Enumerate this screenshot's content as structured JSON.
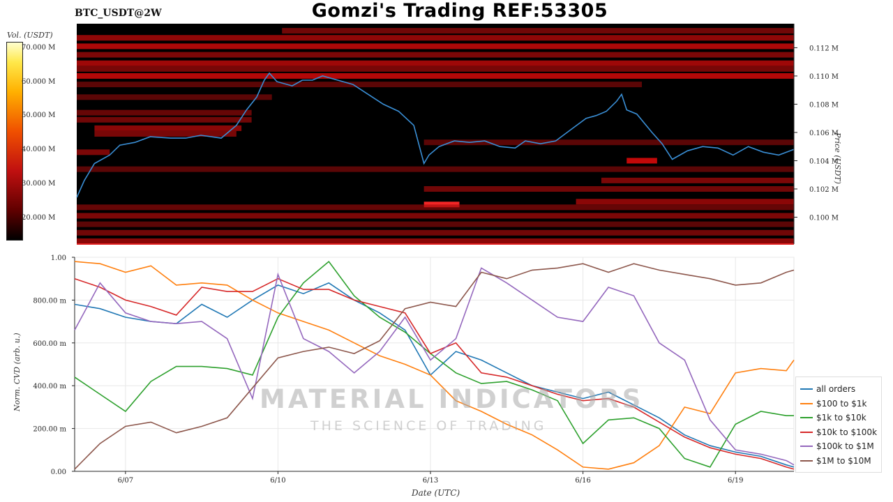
{
  "header": {
    "title": "Gomzi's Trading REF:53305",
    "pair": "BTC_USDT@2W"
  },
  "watermark": {
    "line1": "MATERIAL INDICATORS",
    "line2": "THE SCIENCE OF TRADING"
  },
  "colors": {
    "all_orders": "#1f77b4",
    "r100_1k": "#ff7f0e",
    "r1k_10k": "#2ca02c",
    "r10k_100k": "#d62728",
    "r100k_1m": "#9467bd",
    "r1m_10m": "#8c564b",
    "price_line": "#3a8fd6",
    "heat_low": "#000000",
    "heat_high": "#ff2020"
  },
  "chart_data": [
    {
      "type": "heatmap",
      "title": "",
      "colorbar_label": "Vol. (USDT)",
      "colorbar_ticks": [
        "70.000 M",
        "60.000 M",
        "50.000 M",
        "40.000 M",
        "30.000 M",
        "20.000 M"
      ],
      "colorbar_values": [
        70,
        60,
        50,
        40,
        30,
        20
      ],
      "colorbar_range": [
        14,
        72
      ],
      "ylabel": "Price (USDT)",
      "y_ticks": [
        "0.100 M",
        "0.102 M",
        "0.104 M",
        "0.106 M",
        "0.108 M",
        "0.110 M",
        "0.112 M"
      ],
      "y_tick_values": [
        100000,
        102000,
        104000,
        106000,
        108000,
        110000,
        112000
      ],
      "ylim": [
        98100,
        113700
      ],
      "xlim": [
        6.15,
        20.3
      ],
      "price_series": {
        "name": "",
        "x": [
          6.15,
          6.3,
          6.5,
          6.8,
          7.0,
          7.3,
          7.6,
          8.0,
          8.3,
          8.6,
          9.0,
          9.3,
          9.5,
          9.7,
          9.85,
          9.95,
          10.1,
          10.4,
          10.6,
          10.8,
          11.0,
          11.3,
          11.6,
          11.9,
          12.2,
          12.5,
          12.8,
          13.0,
          13.1,
          13.3,
          13.6,
          13.9,
          14.2,
          14.5,
          14.8,
          15.0,
          15.3,
          15.6,
          15.9,
          16.2,
          16.4,
          16.6,
          16.8,
          16.9,
          17.0,
          17.2,
          17.5,
          17.7,
          17.9,
          18.2,
          18.5,
          18.8,
          19.1,
          19.4,
          19.7,
          20.0,
          20.3
        ],
        "values": [
          101400,
          102600,
          103800,
          104400,
          105100,
          105300,
          105700,
          105600,
          105600,
          105800,
          105600,
          106500,
          107600,
          108500,
          109700,
          110200,
          109600,
          109300,
          109700,
          109700,
          110000,
          109700,
          109400,
          108700,
          108000,
          107500,
          106500,
          103800,
          104400,
          105000,
          105400,
          105300,
          105400,
          105000,
          104900,
          105400,
          105200,
          105400,
          106200,
          107000,
          107200,
          107500,
          108200,
          108700,
          107600,
          107300,
          106000,
          105200,
          104100,
          104700,
          105000,
          104900,
          104400,
          105000,
          104600,
          104400,
          104800
        ]
      },
      "liquidity_bands": [
        {
          "price": 113200,
          "x0": 10.2,
          "x1": 20.3,
          "vol": 26
        },
        {
          "price": 112700,
          "x0": 6.15,
          "x1": 20.3,
          "vol": 31
        },
        {
          "price": 112100,
          "x0": 6.15,
          "x1": 20.3,
          "vol": 35
        },
        {
          "price": 111500,
          "x0": 6.15,
          "x1": 20.3,
          "vol": 28
        },
        {
          "price": 110900,
          "x0": 6.15,
          "x1": 20.3,
          "vol": 33
        },
        {
          "price": 110500,
          "x0": 6.15,
          "x1": 20.3,
          "vol": 27
        },
        {
          "price": 110000,
          "x0": 6.15,
          "x1": 20.3,
          "vol": 36
        },
        {
          "price": 109400,
          "x0": 6.15,
          "x1": 17.3,
          "vol": 22
        },
        {
          "price": 108500,
          "x0": 6.15,
          "x1": 10.0,
          "vol": 22
        },
        {
          "price": 107400,
          "x0": 6.15,
          "x1": 9.6,
          "vol": 24
        },
        {
          "price": 106900,
          "x0": 6.15,
          "x1": 9.6,
          "vol": 26
        },
        {
          "price": 106300,
          "x0": 6.5,
          "x1": 9.4,
          "vol": 30
        },
        {
          "price": 105900,
          "x0": 6.5,
          "x1": 9.3,
          "vol": 27
        },
        {
          "price": 105300,
          "x0": 13.0,
          "x1": 20.3,
          "vol": 22
        },
        {
          "price": 104600,
          "x0": 6.15,
          "x1": 6.8,
          "vol": 28
        },
        {
          "price": 104000,
          "x0": 17.0,
          "x1": 17.6,
          "vol": 38
        },
        {
          "price": 103400,
          "x0": 6.15,
          "x1": 20.3,
          "vol": 22
        },
        {
          "price": 102600,
          "x0": 16.5,
          "x1": 20.3,
          "vol": 28
        },
        {
          "price": 102000,
          "x0": 13.0,
          "x1": 20.3,
          "vol": 26
        },
        {
          "price": 101100,
          "x0": 16.0,
          "x1": 20.3,
          "vol": 30
        },
        {
          "price": 100900,
          "x0": 13.0,
          "x1": 13.7,
          "vol": 55
        },
        {
          "price": 100700,
          "x0": 6.15,
          "x1": 20.3,
          "vol": 24
        },
        {
          "price": 100100,
          "x0": 6.15,
          "x1": 20.3,
          "vol": 28
        },
        {
          "price": 99500,
          "x0": 6.15,
          "x1": 20.3,
          "vol": 22
        },
        {
          "price": 98900,
          "x0": 6.15,
          "x1": 20.3,
          "vol": 26
        },
        {
          "price": 98300,
          "x0": 6.15,
          "x1": 20.3,
          "vol": 30
        }
      ]
    },
    {
      "type": "line",
      "title": "",
      "xlabel": "Date (UTC)",
      "ylabel": "Norm. CVD (arb. u.)",
      "x_ticks": [
        "6/07",
        "6/10",
        "6/13",
        "6/16",
        "6/19"
      ],
      "x_tick_values": [
        7,
        10,
        13,
        16,
        19
      ],
      "y_ticks": [
        "0.00",
        "200.00 m",
        "400.00 m",
        "600.00 m",
        "800.00 m",
        "1.00"
      ],
      "y_tick_values": [
        0,
        0.2,
        0.4,
        0.6,
        0.8,
        1.0
      ],
      "xlim": [
        6.0,
        20.15
      ],
      "ylim": [
        0,
        1.0
      ],
      "grid": true,
      "legend_position": "bottom-right",
      "x": [
        6.0,
        6.5,
        7.0,
        7.5,
        8.0,
        8.5,
        9.0,
        9.5,
        10.0,
        10.5,
        11.0,
        11.5,
        12.0,
        12.5,
        13.0,
        13.5,
        14.0,
        14.5,
        15.0,
        15.5,
        16.0,
        16.5,
        17.0,
        17.5,
        18.0,
        18.5,
        19.0,
        19.5,
        20.0,
        20.15
      ],
      "series": [
        {
          "name": "all orders",
          "color_key": "all_orders",
          "values": [
            0.78,
            0.76,
            0.72,
            0.7,
            0.69,
            0.78,
            0.72,
            0.8,
            0.87,
            0.83,
            0.88,
            0.8,
            0.74,
            0.66,
            0.45,
            0.56,
            0.52,
            0.46,
            0.4,
            0.37,
            0.34,
            0.37,
            0.31,
            0.25,
            0.17,
            0.12,
            0.09,
            0.07,
            0.03,
            0.02
          ]
        },
        {
          "name": "$100 to $1k",
          "color_key": "r100_1k",
          "values": [
            0.98,
            0.97,
            0.93,
            0.96,
            0.87,
            0.88,
            0.87,
            0.8,
            0.74,
            0.7,
            0.66,
            0.6,
            0.54,
            0.5,
            0.45,
            0.33,
            0.28,
            0.22,
            0.17,
            0.1,
            0.02,
            0.01,
            0.04,
            0.12,
            0.3,
            0.27,
            0.46,
            0.48,
            0.47,
            0.52
          ]
        },
        {
          "name": "$1k to $10k",
          "color_key": "r1k_10k",
          "values": [
            0.44,
            0.36,
            0.28,
            0.42,
            0.49,
            0.49,
            0.48,
            0.45,
            0.72,
            0.88,
            0.98,
            0.82,
            0.72,
            0.65,
            0.55,
            0.46,
            0.41,
            0.42,
            0.38,
            0.33,
            0.13,
            0.24,
            0.25,
            0.2,
            0.06,
            0.02,
            0.22,
            0.28,
            0.26,
            0.26
          ]
        },
        {
          "name": "$10k to $100k",
          "color_key": "r10k_100k",
          "values": [
            0.9,
            0.86,
            0.8,
            0.77,
            0.73,
            0.86,
            0.84,
            0.84,
            0.9,
            0.85,
            0.85,
            0.8,
            0.77,
            0.74,
            0.55,
            0.6,
            0.46,
            0.44,
            0.4,
            0.36,
            0.33,
            0.34,
            0.3,
            0.23,
            0.16,
            0.11,
            0.08,
            0.06,
            0.02,
            0.01
          ]
        },
        {
          "name": "$100k to $1M",
          "color_key": "r100k_1m",
          "values": [
            0.66,
            0.88,
            0.74,
            0.7,
            0.69,
            0.7,
            0.62,
            0.34,
            0.92,
            0.62,
            0.56,
            0.46,
            0.56,
            0.72,
            0.52,
            0.62,
            0.95,
            0.88,
            0.8,
            0.72,
            0.7,
            0.86,
            0.82,
            0.6,
            0.52,
            0.24,
            0.1,
            0.08,
            0.05,
            0.03
          ]
        },
        {
          "name": "$1M to $10M",
          "color_key": "r1m_10m",
          "values": [
            0.01,
            0.13,
            0.21,
            0.23,
            0.18,
            0.21,
            0.25,
            0.39,
            0.53,
            0.56,
            0.58,
            0.55,
            0.61,
            0.76,
            0.79,
            0.77,
            0.93,
            0.9,
            0.94,
            0.95,
            0.97,
            0.93,
            0.97,
            0.94,
            0.92,
            0.9,
            0.87,
            0.88,
            0.93,
            0.94
          ]
        }
      ]
    }
  ]
}
